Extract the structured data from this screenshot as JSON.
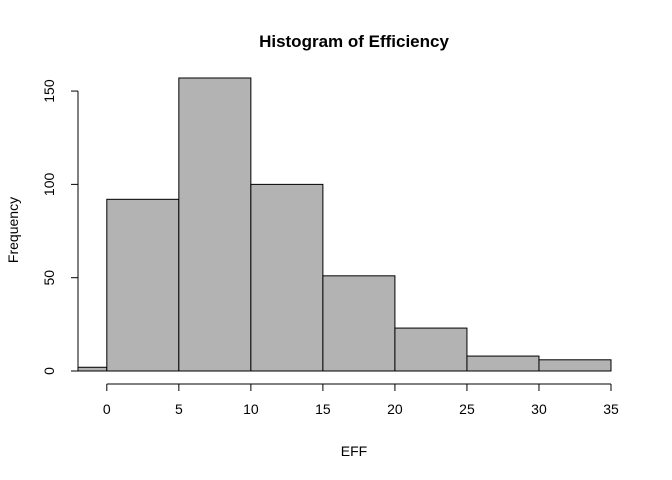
{
  "chart_data": {
    "type": "bar",
    "title": "Histogram of Efficiency",
    "xlabel": "EFF",
    "ylabel": "Frequency",
    "bins": [
      {
        "start": -2,
        "end": 0,
        "count": 2
      },
      {
        "start": 0,
        "end": 5,
        "count": 92
      },
      {
        "start": 5,
        "end": 10,
        "count": 157
      },
      {
        "start": 10,
        "end": 15,
        "count": 100
      },
      {
        "start": 15,
        "end": 20,
        "count": 51
      },
      {
        "start": 20,
        "end": 25,
        "count": 23
      },
      {
        "start": 25,
        "end": 30,
        "count": 8
      },
      {
        "start": 30,
        "end": 35,
        "count": 6
      }
    ],
    "x_ticks": [
      0,
      5,
      10,
      15,
      20,
      25,
      30,
      35
    ],
    "y_ticks": [
      0,
      50,
      100,
      150
    ],
    "xlim": [
      -2,
      35
    ],
    "ylim": [
      0,
      157
    ],
    "grid": false,
    "bar_color": "#b3b3b3"
  }
}
